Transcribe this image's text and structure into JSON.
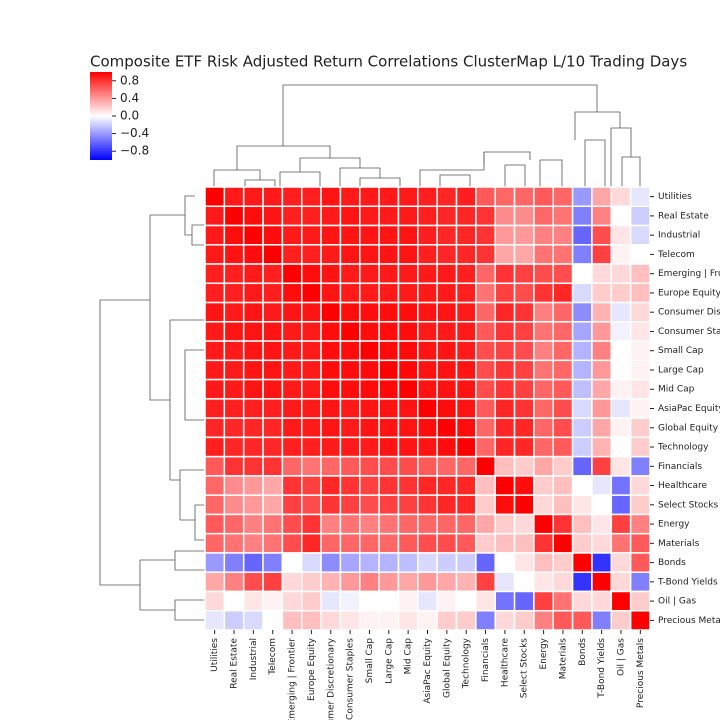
{
  "chart_data": {
    "type": "heatmap",
    "title": "Composite ETF Risk Adjusted Return Correlations ClusterMap L/10 Trading Days",
    "categories": [
      "Utilities",
      "Real Estate",
      "Industrial",
      "Telecom",
      "Emerging | Frontier",
      "Europe Equity",
      "Consumer Discretionary",
      "Consumer Staples",
      "Small Cap",
      "Large Cap",
      "Mid Cap",
      "AsiaPac Equity",
      "Global Equity",
      "Technology",
      "Financials",
      "Healthcare",
      "Select Stocks",
      "Energy",
      "Materials",
      "Bonds",
      "T-Bond Yields",
      "Oil | Gas",
      "Precious Metals"
    ],
    "values": [
      [
        1,
        0.9,
        0.9,
        0.9,
        0.88,
        0.88,
        0.92,
        0.9,
        0.9,
        0.9,
        0.9,
        0.88,
        0.85,
        0.88,
        0.65,
        0.6,
        0.6,
        0.65,
        0.6,
        -0.4,
        0.35,
        0.15,
        -0.1
      ],
      [
        0.9,
        1,
        0.95,
        0.92,
        0.88,
        0.88,
        0.9,
        0.92,
        0.9,
        0.9,
        0.9,
        0.88,
        0.85,
        0.85,
        0.8,
        0.45,
        0.45,
        0.6,
        0.55,
        -0.5,
        0.5,
        0,
        -0.2
      ],
      [
        0.9,
        0.95,
        1,
        0.95,
        0.9,
        0.9,
        0.92,
        0.92,
        0.92,
        0.92,
        0.92,
        0.88,
        0.85,
        0.85,
        0.8,
        0.4,
        0.4,
        0.5,
        0.5,
        -0.6,
        0.7,
        0.1,
        -0.15
      ],
      [
        0.9,
        0.92,
        0.95,
        1,
        0.88,
        0.88,
        0.9,
        0.92,
        0.92,
        0.92,
        0.92,
        0.88,
        0.85,
        0.85,
        0.8,
        0.35,
        0.35,
        0.55,
        0.55,
        -0.5,
        0.75,
        0.05,
        0
      ],
      [
        0.88,
        0.88,
        0.9,
        0.88,
        1,
        0.95,
        0.92,
        0.9,
        0.9,
        0.9,
        0.9,
        0.9,
        0.9,
        0.88,
        0.6,
        0.8,
        0.75,
        0.7,
        0.7,
        0,
        0.15,
        0.15,
        0.25
      ],
      [
        0.88,
        0.88,
        0.9,
        0.88,
        0.95,
        1,
        0.92,
        0.9,
        0.9,
        0.9,
        0.9,
        0.9,
        0.9,
        0.88,
        0.55,
        0.75,
        0.7,
        0.8,
        0.85,
        -0.15,
        0.2,
        0.2,
        0.25
      ],
      [
        0.92,
        0.9,
        0.92,
        0.9,
        0.92,
        0.92,
        1,
        0.95,
        0.95,
        0.95,
        0.95,
        0.92,
        0.92,
        0.9,
        0.6,
        0.85,
        0.8,
        0.5,
        0.6,
        -0.45,
        0.3,
        -0.1,
        0.15
      ],
      [
        0.9,
        0.92,
        0.92,
        0.92,
        0.9,
        0.9,
        0.95,
        1,
        0.95,
        0.95,
        0.95,
        0.9,
        0.9,
        0.9,
        0.65,
        0.8,
        0.75,
        0.55,
        0.6,
        -0.35,
        0.4,
        -0.05,
        0.1
      ],
      [
        0.9,
        0.9,
        0.92,
        0.92,
        0.9,
        0.9,
        0.95,
        0.95,
        1,
        0.96,
        0.96,
        0.92,
        0.92,
        0.9,
        0.7,
        0.75,
        0.7,
        0.5,
        0.6,
        -0.3,
        0.5,
        0,
        0.05
      ],
      [
        0.9,
        0.9,
        0.92,
        0.92,
        0.9,
        0.9,
        0.95,
        0.95,
        0.96,
        1,
        0.97,
        0.93,
        0.93,
        0.92,
        0.7,
        0.8,
        0.75,
        0.55,
        0.6,
        -0.3,
        0.4,
        0,
        0.05
      ],
      [
        0.9,
        0.9,
        0.92,
        0.92,
        0.9,
        0.9,
        0.95,
        0.95,
        0.96,
        0.97,
        1,
        0.93,
        0.93,
        0.92,
        0.7,
        0.8,
        0.75,
        0.6,
        0.65,
        -0.25,
        0.35,
        0.05,
        0.1
      ],
      [
        0.88,
        0.88,
        0.88,
        0.88,
        0.9,
        0.9,
        0.92,
        0.9,
        0.92,
        0.93,
        0.93,
        1,
        0.95,
        0.92,
        0.65,
        0.85,
        0.8,
        0.6,
        0.7,
        -0.15,
        0.4,
        -0.1,
        0.05
      ],
      [
        0.85,
        0.85,
        0.85,
        0.85,
        0.9,
        0.9,
        0.92,
        0.9,
        0.92,
        0.93,
        0.93,
        0.95,
        1,
        0.95,
        0.6,
        0.85,
        0.85,
        0.6,
        0.7,
        -0.2,
        0.35,
        0.05,
        0.2
      ],
      [
        0.88,
        0.85,
        0.85,
        0.85,
        0.88,
        0.88,
        0.9,
        0.9,
        0.9,
        0.92,
        0.92,
        0.92,
        0.95,
        1,
        0.6,
        0.85,
        0.85,
        0.6,
        0.65,
        -0.2,
        0.3,
        0,
        0.2
      ],
      [
        0.65,
        0.8,
        0.8,
        0.8,
        0.6,
        0.55,
        0.6,
        0.65,
        0.7,
        0.7,
        0.7,
        0.65,
        0.6,
        0.6,
        1,
        0.25,
        0.2,
        0.35,
        0.2,
        -0.6,
        0.75,
        0.1,
        -0.5
      ],
      [
        0.6,
        0.45,
        0.4,
        0.35,
        0.8,
        0.75,
        0.85,
        0.8,
        0.75,
        0.8,
        0.8,
        0.85,
        0.85,
        0.85,
        0.25,
        1,
        0.95,
        0.2,
        0.25,
        0,
        -0.1,
        -0.55,
        0.15
      ],
      [
        0.6,
        0.45,
        0.4,
        0.35,
        0.75,
        0.7,
        0.8,
        0.75,
        0.7,
        0.75,
        0.75,
        0.8,
        0.85,
        0.85,
        0.2,
        0.95,
        1,
        0.15,
        0.25,
        0.1,
        0,
        -0.6,
        0.2
      ],
      [
        0.65,
        0.6,
        0.5,
        0.55,
        0.7,
        0.8,
        0.5,
        0.55,
        0.5,
        0.55,
        0.6,
        0.6,
        0.6,
        0.6,
        0.35,
        0.2,
        0.15,
        1,
        0.8,
        0.25,
        0.1,
        0.75,
        0.5
      ],
      [
        0.6,
        0.55,
        0.5,
        0.55,
        0.7,
        0.85,
        0.6,
        0.6,
        0.6,
        0.6,
        0.65,
        0.7,
        0.7,
        0.65,
        0.2,
        0.25,
        0.25,
        0.8,
        1,
        0.2,
        0.15,
        0.55,
        0.65
      ],
      [
        -0.4,
        -0.5,
        -0.6,
        -0.5,
        0,
        -0.15,
        -0.45,
        -0.35,
        -0.3,
        -0.3,
        -0.25,
        -0.15,
        -0.2,
        -0.2,
        -0.6,
        0,
        0.1,
        0.25,
        0.2,
        1,
        -0.8,
        0.15,
        0.65
      ],
      [
        0.35,
        0.5,
        0.7,
        0.75,
        0.15,
        0.2,
        0.3,
        0.4,
        0.5,
        0.4,
        0.35,
        0.4,
        0.35,
        0.3,
        0.75,
        -0.1,
        0,
        0.1,
        0.15,
        -0.8,
        1,
        0.15,
        -0.5
      ],
      [
        0.15,
        0,
        0.1,
        0.05,
        0.15,
        0.2,
        -0.1,
        -0.05,
        0,
        0,
        0.05,
        -0.1,
        0.05,
        0,
        0.1,
        -0.55,
        -0.6,
        0.75,
        0.55,
        0.15,
        0.15,
        1,
        0.2
      ],
      [
        -0.1,
        -0.2,
        -0.15,
        0,
        0.25,
        0.25,
        0.15,
        0.1,
        0.05,
        0.05,
        0.1,
        0.05,
        0.2,
        0.2,
        -0.5,
        0.15,
        0.2,
        0.5,
        0.65,
        0.65,
        -0.5,
        0.2,
        1
      ]
    ],
    "colors": [
      "#0000ff",
      "#ffffff",
      "#ff0000"
    ],
    "clim": [
      -1,
      1
    ],
    "cticks": [
      0.8,
      0.4,
      {
        "value": 0,
        "label": "0.0"
      },
      {
        "value": -0.4,
        "label": "−0.4"
      },
      {
        "value": -0.8,
        "label": "−0.8"
      }
    ]
  }
}
